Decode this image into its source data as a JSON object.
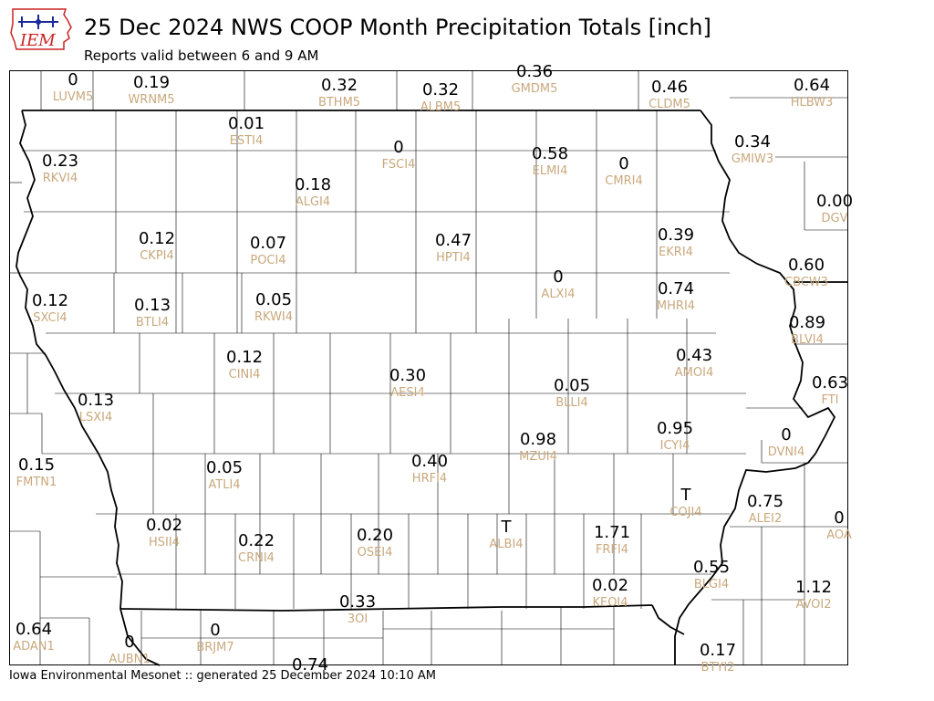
{
  "header": {
    "title": "25 Dec 2024 NWS COOP Month Precipitation Totals [inch]",
    "subtitle": "Reports valid between 6 and 9 AM",
    "logo_text": "IEM"
  },
  "footer": {
    "text": "Iowa Environmental Mesonet :: generated 25 December 2024 10:10 AM"
  },
  "colors": {
    "value_text": "#000000",
    "station_text": "#c9a97d",
    "border": "#000000",
    "logo_red": "#cc2222",
    "logo_blue": "#1a2a9a"
  },
  "stations": [
    {
      "value": "0",
      "id": "LUVM5"
    },
    {
      "value": "0.19",
      "id": "WRNM5"
    },
    {
      "value": "0.32",
      "id": "BTHM5"
    },
    {
      "value": "0.32",
      "id": "ALBM5"
    },
    {
      "value": "0.36",
      "id": "GMDM5"
    },
    {
      "value": "0.46",
      "id": "CLDM5"
    },
    {
      "value": "0.64",
      "id": "HLBW3"
    },
    {
      "value": "0.01",
      "id": "ESTI4"
    },
    {
      "value": "0",
      "id": "FSCI4"
    },
    {
      "value": "0.58",
      "id": "ELMI4"
    },
    {
      "value": "0",
      "id": "CMRI4"
    },
    {
      "value": "0.34",
      "id": "GMIW3"
    },
    {
      "value": "0.23",
      "id": "RKVI4"
    },
    {
      "value": "0.18",
      "id": "ALGI4"
    },
    {
      "value": "0.00",
      "id": "DGV"
    },
    {
      "value": "0.12",
      "id": "CKPI4"
    },
    {
      "value": "0.07",
      "id": "POCI4"
    },
    {
      "value": "0.47",
      "id": "HPTI4"
    },
    {
      "value": "0.39",
      "id": "EKRI4"
    },
    {
      "value": "0.60",
      "id": "CBCW3"
    },
    {
      "value": "0",
      "id": "ALXI4"
    },
    {
      "value": "0.12",
      "id": "SXCI4"
    },
    {
      "value": "0.13",
      "id": "BTLI4"
    },
    {
      "value": "0.05",
      "id": "RKWI4"
    },
    {
      "value": "0.74",
      "id": "MHRI4"
    },
    {
      "value": "0.89",
      "id": "BLVI4"
    },
    {
      "value": "0.12",
      "id": "CINI4"
    },
    {
      "value": "0.43",
      "id": "AMOI4"
    },
    {
      "value": "0.30",
      "id": "AESI4"
    },
    {
      "value": "0.63",
      "id": "FTI"
    },
    {
      "value": "0.05",
      "id": "BLLI4"
    },
    {
      "value": "0.13",
      "id": "LSXI4"
    },
    {
      "value": "0.95",
      "id": "ICYI4"
    },
    {
      "value": "0",
      "id": "DVNI4"
    },
    {
      "value": "0.98",
      "id": "MZUI4"
    },
    {
      "value": "0.40",
      "id": "HRFI4"
    },
    {
      "value": "0.15",
      "id": "FMTN1"
    },
    {
      "value": "0.05",
      "id": "ATLI4"
    },
    {
      "value": "T",
      "id": "COJI4"
    },
    {
      "value": "0.75",
      "id": "ALEI2"
    },
    {
      "value": "0",
      "id": "AOA"
    },
    {
      "value": "0.02",
      "id": "HSII4"
    },
    {
      "value": "0.22",
      "id": "CRNI4"
    },
    {
      "value": "0.20",
      "id": "OSEI4"
    },
    {
      "value": "T",
      "id": "ALBI4"
    },
    {
      "value": "1.71",
      "id": "FRFI4"
    },
    {
      "value": "0.55",
      "id": "BLGI4"
    },
    {
      "value": "0.02",
      "id": "KEOI4"
    },
    {
      "value": "1.12",
      "id": "AVOI2"
    },
    {
      "value": "0.33",
      "id": "3OI"
    },
    {
      "value": "0.64",
      "id": "ADAN1"
    },
    {
      "value": "0",
      "id": "AUBN1"
    },
    {
      "value": "0",
      "id": "BRJM7"
    },
    {
      "value": "0.74",
      "id": ""
    },
    {
      "value": "0.17",
      "id": "BTYI2"
    }
  ]
}
